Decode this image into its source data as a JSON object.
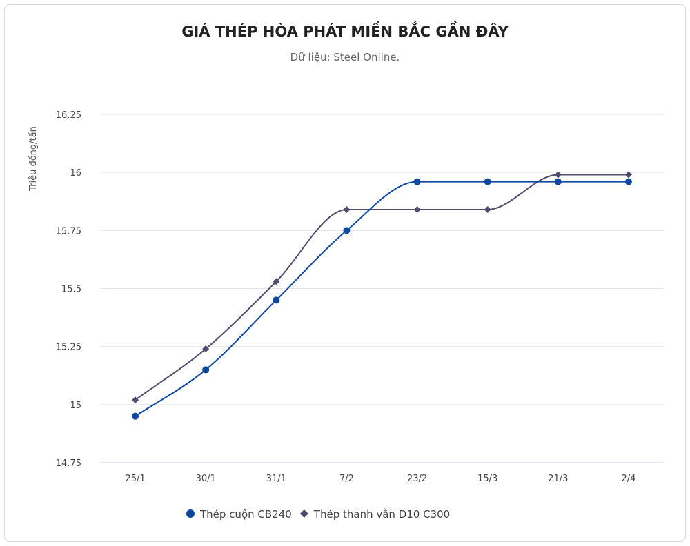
{
  "chart_data": {
    "type": "line",
    "title": "GIÁ THÉP HÒA PHÁT MIỀN BẮC GẦN ĐÂY",
    "subtitle": "Dữ liệu: Steel Online.",
    "xlabel": "",
    "ylabel": "Triệu đồng/tấn",
    "ylim": [
      14.75,
      16.25
    ],
    "yticks": [
      "14.75",
      "15",
      "15.25",
      "15.5",
      "15.75",
      "16",
      "16.25"
    ],
    "categories": [
      "25/1",
      "30/1",
      "31/1",
      "7/2",
      "23/2",
      "15/3",
      "21/3",
      "2/4"
    ],
    "grid": true,
    "legend_position": "bottom",
    "series": [
      {
        "name": "Thép cuộn CB240",
        "color": "#0d47a1",
        "marker": "circle",
        "values": [
          14.95,
          15.15,
          15.45,
          15.75,
          15.96,
          15.96,
          15.96,
          15.96
        ]
      },
      {
        "name": "Thép thanh vằn D10 C300",
        "color": "#544a6e",
        "marker": "diamond",
        "values": [
          15.02,
          15.24,
          15.53,
          15.84,
          15.84,
          15.84,
          15.99,
          15.99
        ]
      }
    ]
  }
}
